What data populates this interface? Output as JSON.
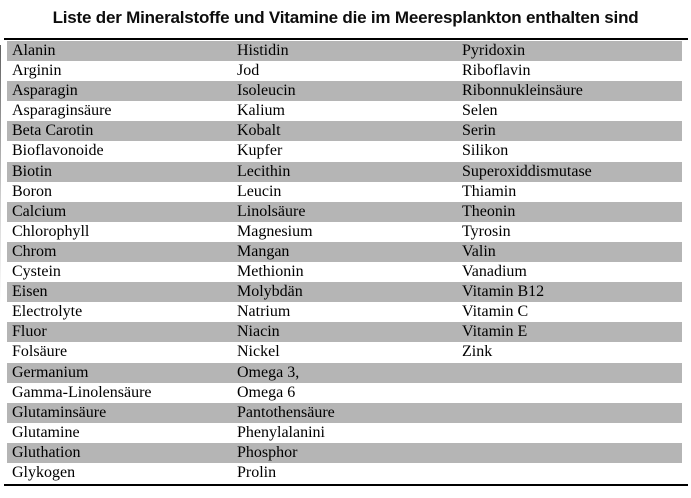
{
  "title": "Liste der Mineralstoffe und Vitamine die im Meeresplankton enthalten sind",
  "colors": {
    "stripe": "#b5b5b5",
    "rule": "#000000",
    "text": "#000000",
    "background": "#ffffff"
  },
  "table": {
    "columns": 3,
    "striping": "odd-rows-gray",
    "rows": [
      [
        "Alanin",
        "Histidin",
        "Pyridoxin"
      ],
      [
        "Arginin",
        "Jod",
        "Riboflavin"
      ],
      [
        "Asparagin",
        "Isoleucin",
        "Ribonnukleinsäure"
      ],
      [
        "Asparaginsäure",
        "Kalium",
        "Selen"
      ],
      [
        "Beta Carotin",
        "Kobalt",
        "Serin"
      ],
      [
        "Bioflavonoide",
        "Kupfer",
        "Silikon"
      ],
      [
        "Biotin",
        "Lecithin",
        "Superoxiddismutase"
      ],
      [
        "Boron",
        "Leucin",
        "Thiamin"
      ],
      [
        "Calcium",
        "Linolsäure",
        "Theonin"
      ],
      [
        "Chlorophyll",
        "Magnesium",
        "Tyrosin"
      ],
      [
        "Chrom",
        "Mangan",
        "Valin"
      ],
      [
        "Cystein",
        "Methionin",
        "Vanadium"
      ],
      [
        "Eisen",
        "Molybdän",
        "Vitamin B12"
      ],
      [
        "Electrolyte",
        "Natrium",
        "Vitamin C"
      ],
      [
        "Fluor",
        "Niacin",
        "Vitamin E"
      ],
      [
        "Folsäure",
        "Nickel",
        "Zink"
      ],
      [
        "Germanium",
        "Omega 3,",
        ""
      ],
      [
        "Gamma-Linolensäure",
        "Omega 6",
        ""
      ],
      [
        "Glutaminsäure",
        "Pantothensäure",
        ""
      ],
      [
        "Glutamine",
        "Phenylalanini",
        ""
      ],
      [
        "Gluthation",
        "Phosphor",
        ""
      ],
      [
        "Glykogen",
        "Prolin",
        ""
      ]
    ]
  }
}
